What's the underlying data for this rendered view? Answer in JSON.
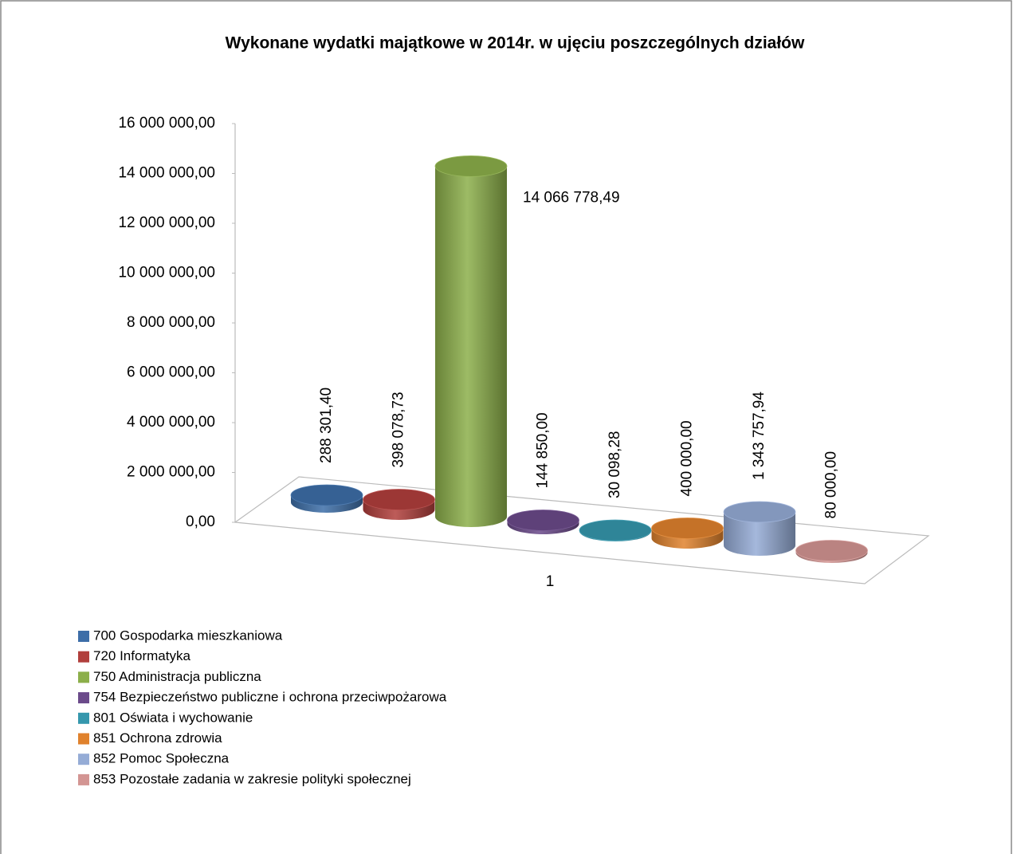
{
  "chart_data": {
    "type": "bar3d",
    "title": "Wykonane wydatki majątkowe  w 2014r. w ujęciu poszczególnych działów",
    "categories": [
      "1"
    ],
    "ylim": [
      0,
      16000000
    ],
    "yticks": [
      {
        "value": 0,
        "label": "0,00"
      },
      {
        "value": 2000000,
        "label": "2 000 000,00"
      },
      {
        "value": 4000000,
        "label": "4 000 000,00"
      },
      {
        "value": 6000000,
        "label": "6 000 000,00"
      },
      {
        "value": 8000000,
        "label": "8 000 000,00"
      },
      {
        "value": 10000000,
        "label": "10 000 000,00"
      },
      {
        "value": 12000000,
        "label": "12 000 000,00"
      },
      {
        "value": 14000000,
        "label": "14 000 000,00"
      },
      {
        "value": 16000000,
        "label": "16 000 000,00"
      }
    ],
    "series": [
      {
        "name": "700 Gospodarka mieszkaniowa",
        "color": "#3d6ea8",
        "values": [
          288301.4
        ],
        "value_labels": [
          "288 301,40"
        ]
      },
      {
        "name": "720 Informatyka",
        "color": "#b13f3c",
        "values": [
          398078.73
        ],
        "value_labels": [
          "398 078,73"
        ]
      },
      {
        "name": "750 Administracja publiczna",
        "color": "#8caf4a",
        "values": [
          14066778.49
        ],
        "value_labels": [
          "14 066 778,49"
        ]
      },
      {
        "name": "754 Bezpieczeństwo publiczne i ochrona przeciwpożarowa",
        "color": "#6b4a8a",
        "values": [
          144850.0
        ],
        "value_labels": [
          "144 850,00"
        ]
      },
      {
        "name": "801 Oświata i wychowanie",
        "color": "#3597ad",
        "values": [
          30098.28
        ],
        "value_labels": [
          "30 098,28"
        ]
      },
      {
        "name": "851 Ochrona zdrowia",
        "color": "#e0822d",
        "values": [
          400000.0
        ],
        "value_labels": [
          "400 000,00"
        ]
      },
      {
        "name": "852 Pomoc Społeczna",
        "color": "#95acd6",
        "values": [
          1343757.94
        ],
        "value_labels": [
          "1 343 757,94"
        ]
      },
      {
        "name": "853 Pozostałe zadania w zakresie polityki społecznej",
        "color": "#d39593",
        "values": [
          80000.0
        ],
        "value_labels": [
          "80 000,00"
        ]
      }
    ]
  }
}
